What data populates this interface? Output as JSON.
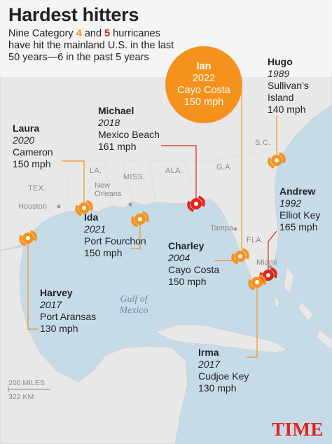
{
  "header": {
    "title": "Hardest hitters",
    "subtitle": [
      {
        "text": "Nine Category ",
        "color": "#222222"
      },
      {
        "text": "4",
        "color": "#f5921e"
      },
      {
        "text": " and ",
        "color": "#222222"
      },
      {
        "text": "5",
        "color": "#e2231a"
      },
      {
        "text": " hurricanes have hit the mainland U.S. in the last 50 years—6 in the past 5 years",
        "color": "#222222"
      }
    ]
  },
  "featured": {
    "name": "Ian",
    "year": "2022",
    "location": "Cayo Costa",
    "wind": "150 mph",
    "color": "#f5921e"
  },
  "hurricanes": [
    {
      "name": "Hugo",
      "year": "1989",
      "location": "Sullivan’s Island",
      "wind": "140 mph",
      "color": "#f5921e"
    },
    {
      "name": "Michael",
      "year": "2018",
      "location": "Mexico Beach",
      "wind": "161 mph",
      "color": "#e2231a"
    },
    {
      "name": "Laura",
      "year": "2020",
      "location": "Cameron",
      "wind": "150 mph",
      "color": "#f5921e"
    },
    {
      "name": "Andrew",
      "year": "1992",
      "location": "Elliot Key",
      "wind": "165 mph",
      "color": "#e2231a"
    },
    {
      "name": "Ida",
      "year": "2021",
      "location": "Port Fourchon",
      "wind": "150 mph",
      "color": "#f5921e"
    },
    {
      "name": "Charley",
      "year": "2004",
      "location": "Cayo Costa",
      "wind": "150 mph",
      "color": "#f5921e"
    },
    {
      "name": "Harvey",
      "year": "2017",
      "location": "Port Aransas",
      "wind": "130 mph",
      "color": "#f5921e"
    },
    {
      "name": "Irma",
      "year": "2017",
      "location": "Cudjoe Key",
      "wind": "130 mph",
      "color": "#f5921e"
    }
  ],
  "map_labels": {
    "states": [
      "TEX.",
      "LA.",
      "MISS.",
      "ALA.",
      "G.A",
      "S.C.",
      "FLA."
    ],
    "cities": [
      "Houston",
      "New Orleans",
      "Tampa",
      "Miami"
    ],
    "water": "Gulf of Mexico"
  },
  "scale": {
    "miles": "200 MILES",
    "km": "322 KM"
  },
  "logo": "TIME"
}
